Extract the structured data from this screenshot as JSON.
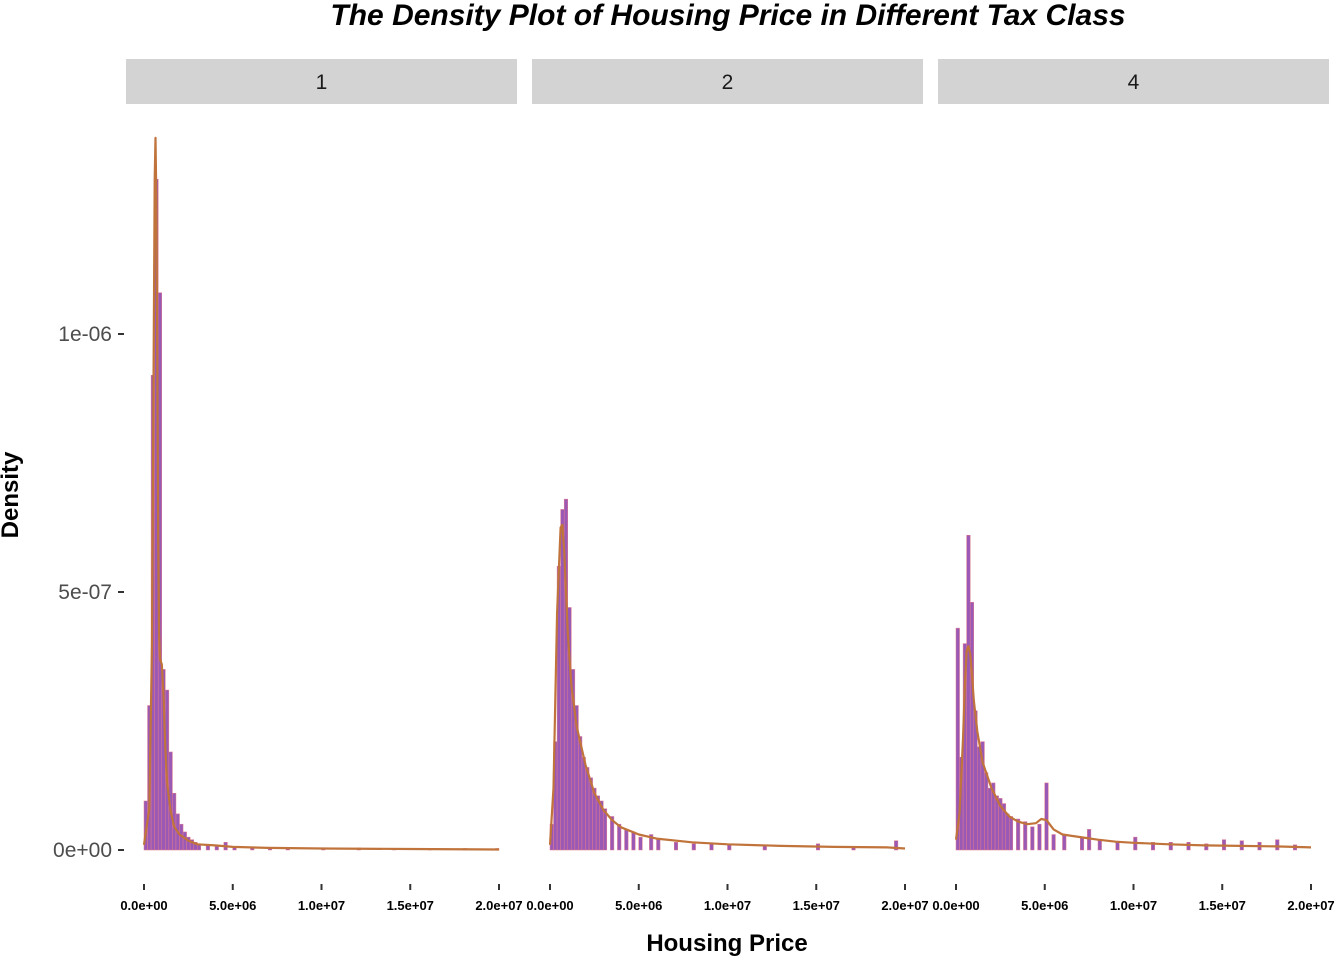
{
  "chart_data": {
    "type": "bar",
    "title": "The Density Plot of Housing Price in Different Tax Class",
    "xlabel": "Housing Price",
    "ylabel": "Density",
    "xlim": [
      0,
      20000000
    ],
    "ylim": [
      0,
      1.39e-06
    ],
    "x_ticks": [
      0,
      5000000,
      10000000,
      15000000,
      20000000
    ],
    "x_tick_labels": [
      "0.0e+00",
      "5.0e+06",
      "1.0e+07",
      "1.5e+07",
      "2.0e+07"
    ],
    "y_ticks": [
      0,
      5e-07,
      1e-06
    ],
    "y_tick_labels": [
      "0e+00",
      "5e-07",
      "1e-06"
    ],
    "grid": false,
    "bin_width": 200000,
    "colors": {
      "bar_fill": "#9b59b6",
      "bar_edge": "#e07a8a",
      "density_line": "#c0733a",
      "strip_bg": "#d3d3d3"
    },
    "facets": [
      {
        "label": "1",
        "hist_x": [
          0,
          200000,
          400000,
          600000,
          800000,
          1000000,
          1200000,
          1400000,
          1600000,
          1800000,
          2000000,
          2200000,
          2400000,
          2600000,
          2800000,
          3000000,
          3500000,
          4000000,
          4500000,
          5000000,
          6000000,
          7000000,
          8000000,
          10000000,
          12000000,
          14000000,
          16000000,
          18000000,
          19800000
        ],
        "hist_y": [
          9.5e-08,
          2.8e-07,
          9.2e-07,
          1.3e-06,
          1.08e-06,
          3.5e-07,
          3.1e-07,
          1.9e-07,
          1.1e-07,
          7e-08,
          5e-08,
          3.5e-08,
          2.5e-08,
          2e-08,
          1.5e-08,
          1.2e-08,
          1e-08,
          8e-09,
          1.5e-08,
          7e-09,
          6e-09,
          5e-09,
          5e-09,
          4e-09,
          4e-09,
          3e-09,
          3e-09,
          3e-09,
          3e-09
        ],
        "density_x": [
          0,
          300000,
          450000,
          550000,
          600000,
          650000,
          700000,
          750000,
          800000,
          850000,
          900000,
          1000000,
          1100000,
          1200000,
          1300000,
          1500000,
          1700000,
          2000000,
          2500000,
          3000000,
          4000000,
          5000000,
          7000000,
          10000000,
          15000000,
          20000000
        ],
        "density_y": [
          1e-08,
          8e-08,
          4e-07,
          1e-06,
          1.3e-06,
          1.38e-06,
          1.25e-06,
          9.5e-07,
          6e-07,
          4.2e-07,
          3.7e-07,
          3.6e-07,
          3e-07,
          2e-07,
          1.3e-07,
          7.5e-08,
          4.5e-08,
          3e-08,
          1.8e-08,
          1.1e-08,
          9e-09,
          6e-09,
          4e-09,
          3e-09,
          2e-09,
          1e-09
        ]
      },
      {
        "label": "2",
        "hist_x": [
          0,
          200000,
          400000,
          600000,
          800000,
          1000000,
          1200000,
          1400000,
          1600000,
          1800000,
          2000000,
          2200000,
          2400000,
          2600000,
          2800000,
          3000000,
          3400000,
          3800000,
          4200000,
          4600000,
          5000000,
          5600000,
          6000000,
          7000000,
          8000000,
          9000000,
          10000000,
          12000000,
          15000000,
          17000000,
          19400000
        ],
        "hist_y": [
          5e-08,
          2.1e-07,
          5.5e-07,
          6.6e-07,
          6.8e-07,
          4.7e-07,
          3.5e-07,
          2.8e-07,
          2.2e-07,
          1.8e-07,
          1.6e-07,
          1.4e-07,
          1.2e-07,
          1.05e-07,
          9.5e-08,
          8e-08,
          6.5e-08,
          5e-08,
          4e-08,
          3.5e-08,
          2.5e-08,
          3e-08,
          2e-08,
          1.5e-08,
          1.2e-08,
          1.2e-08,
          1.1e-08,
          8e-09,
          1.2e-08,
          7e-09,
          1.8e-08
        ],
        "density_x": [
          0,
          200000,
          400000,
          600000,
          700000,
          800000,
          900000,
          1000000,
          1200000,
          1500000,
          2000000,
          2500000,
          3000000,
          3500000,
          4000000,
          5000000,
          6000000,
          8000000,
          10000000,
          13000000,
          16000000,
          19000000,
          20000000
        ],
        "density_y": [
          1e-08,
          1.2e-07,
          4.6e-07,
          6.25e-07,
          6.3e-07,
          5.8e-07,
          5e-07,
          4.2e-07,
          3.2e-07,
          2.4e-07,
          1.65e-07,
          1.1e-07,
          7.8e-08,
          5.8e-08,
          4.4e-08,
          3e-08,
          2.2e-08,
          1.5e-08,
          1.1e-08,
          8e-09,
          6e-09,
          5e-09,
          3e-09
        ]
      },
      {
        "label": "4",
        "hist_x": [
          0,
          200000,
          400000,
          600000,
          800000,
          1000000,
          1200000,
          1400000,
          1600000,
          1800000,
          2000000,
          2200000,
          2400000,
          2600000,
          2800000,
          3000000,
          3400000,
          3800000,
          4200000,
          4600000,
          5000000,
          5400000,
          6000000,
          7000000,
          7400000,
          8000000,
          9000000,
          10000000,
          11000000,
          12000000,
          13000000,
          14000000,
          15000000,
          16000000,
          17000000,
          18000000,
          19000000
        ],
        "hist_y": [
          4.3e-07,
          1.8e-07,
          4e-07,
          6.1e-07,
          4.8e-07,
          2.7e-07,
          2e-07,
          2.1e-07,
          1.5e-07,
          1.2e-07,
          1.3e-07,
          1.05e-07,
          1e-07,
          9e-08,
          7e-08,
          6.5e-08,
          6e-08,
          5.5e-08,
          4.5e-08,
          5e-08,
          1.3e-07,
          3e-08,
          3e-08,
          2.5e-08,
          4e-08,
          2e-08,
          1.5e-08,
          2.5e-08,
          1.5e-08,
          1.5e-08,
          1.5e-08,
          1.2e-08,
          2e-08,
          1.8e-08,
          1.5e-08,
          2e-08,
          1e-08
        ],
        "density_x": [
          0,
          200000,
          400000,
          500000,
          600000,
          700000,
          800000,
          900000,
          1000000,
          1200000,
          1500000,
          2000000,
          2500000,
          3000000,
          3500000,
          4000000,
          4500000,
          4800000,
          5100000,
          5500000,
          6000000,
          7000000,
          8000000,
          9000000,
          10000000,
          12000000,
          14000000,
          16000000,
          18000000,
          20000000
        ],
        "density_y": [
          2e-08,
          7e-08,
          2.2e-07,
          3.2e-07,
          3.85e-07,
          3.95e-07,
          3.8e-07,
          3.4e-07,
          2.9e-07,
          2.3e-07,
          1.7e-07,
          1.2e-07,
          8.5e-08,
          6.5e-08,
          5.5e-08,
          5e-08,
          5.2e-08,
          6e-08,
          5.8e-08,
          4e-08,
          3e-08,
          2.5e-08,
          2e-08,
          1.6e-08,
          1.4e-08,
          1.1e-08,
          9e-09,
          8e-09,
          7e-09,
          5e-09
        ]
      }
    ]
  }
}
